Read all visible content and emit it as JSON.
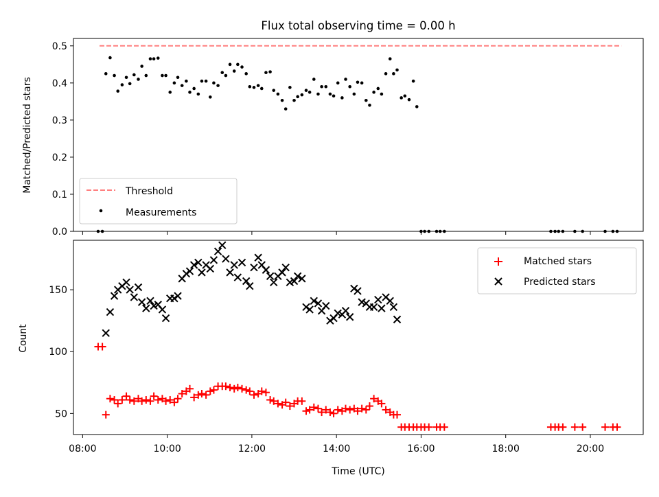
{
  "figure": {
    "title": "Flux total observing time = 0.00 h",
    "xlabel": "Time (UTC)",
    "x_ticks": [
      "08:00",
      "10:00",
      "12:00",
      "14:00",
      "16:00",
      "18:00",
      "20:00"
    ]
  },
  "chart_data": [
    {
      "type": "scatter",
      "ylabel": "Matched/Predicted stars",
      "ylim": [
        0,
        0.52
      ],
      "xlim": [
        "07:47",
        "21:15"
      ],
      "y_ticks": [
        "0.0",
        "0.1",
        "0.2",
        "0.3",
        "0.4",
        "0.5"
      ],
      "legend_position": "lower-left",
      "colors": {
        "threshold": "#ff7f7f",
        "measurements": "#000000"
      },
      "series": [
        {
          "name": "Threshold",
          "style": "dashed-line",
          "x": [
            "08:24",
            "20:44"
          ],
          "y": [
            0.5,
            0.5
          ]
        },
        {
          "name": "Measurements",
          "style": "points",
          "x": [
            "08:22",
            "08:28",
            "08:33",
            "08:39",
            "08:45",
            "08:50",
            "08:56",
            "09:02",
            "09:07",
            "09:13",
            "09:19",
            "09:24",
            "09:30",
            "09:36",
            "09:41",
            "09:47",
            "09:53",
            "09:58",
            "10:04",
            "10:10",
            "10:15",
            "10:21",
            "10:27",
            "10:32",
            "10:38",
            "10:44",
            "10:49",
            "10:55",
            "11:01",
            "11:06",
            "11:12",
            "11:18",
            "11:23",
            "11:29",
            "11:35",
            "11:40",
            "11:46",
            "11:52",
            "11:57",
            "12:03",
            "12:09",
            "12:14",
            "12:20",
            "12:26",
            "12:31",
            "12:37",
            "12:43",
            "12:48",
            "12:54",
            "13:00",
            "13:05",
            "13:11",
            "13:17",
            "13:22",
            "13:28",
            "13:34",
            "13:39",
            "13:45",
            "13:51",
            "13:56",
            "14:02",
            "14:08",
            "14:13",
            "14:19",
            "14:25",
            "14:30",
            "14:36",
            "14:42",
            "14:47",
            "14:53",
            "14:59",
            "15:04",
            "15:10",
            "15:16",
            "15:21",
            "15:26",
            "15:32",
            "15:37",
            "15:43",
            "15:49",
            "15:54",
            "16:00",
            "16:05",
            "16:11",
            "16:22",
            "16:27",
            "16:33",
            "19:04",
            "19:10",
            "19:15",
            "19:21",
            "19:38",
            "19:49",
            "20:21",
            "20:32",
            "20:38"
          ],
          "y": [
            0.0,
            0.0,
            0.425,
            0.468,
            0.42,
            0.378,
            0.395,
            0.415,
            0.398,
            0.422,
            0.41,
            0.445,
            0.42,
            0.465,
            0.465,
            0.467,
            0.42,
            0.42,
            0.375,
            0.4,
            0.415,
            0.393,
            0.405,
            0.375,
            0.385,
            0.37,
            0.405,
            0.405,
            0.362,
            0.4,
            0.393,
            0.428,
            0.42,
            0.45,
            0.432,
            0.45,
            0.443,
            0.425,
            0.39,
            0.388,
            0.393,
            0.385,
            0.428,
            0.43,
            0.38,
            0.37,
            0.353,
            0.33,
            0.388,
            0.353,
            0.363,
            0.368,
            0.38,
            0.375,
            0.41,
            0.37,
            0.39,
            0.39,
            0.37,
            0.365,
            0.4,
            0.36,
            0.41,
            0.39,
            0.37,
            0.402,
            0.4,
            0.353,
            0.34,
            0.375,
            0.385,
            0.37,
            0.425,
            0.465,
            0.425,
            0.435,
            0.36,
            0.365,
            0.355,
            0.405,
            0.336,
            0.0,
            0.0,
            0.0,
            0.0,
            0.0,
            0.0,
            0.0,
            0.0,
            0.0,
            0.0,
            0.0,
            0.0,
            0.0,
            0.0,
            0.0
          ]
        }
      ]
    },
    {
      "type": "scatter",
      "ylabel": "Count",
      "ylim": [
        33,
        190
      ],
      "xlim": [
        "07:47",
        "21:15"
      ],
      "y_ticks": [
        "50",
        "100",
        "150"
      ],
      "legend_position": "top-right",
      "colors": {
        "matched": "#ff0000",
        "predicted": "#000000"
      },
      "series": [
        {
          "name": "Matched stars",
          "marker": "plus",
          "x": [
            "08:22",
            "08:28",
            "08:33",
            "08:39",
            "08:45",
            "08:50",
            "08:56",
            "09:02",
            "09:07",
            "09:13",
            "09:19",
            "09:24",
            "09:30",
            "09:36",
            "09:41",
            "09:47",
            "09:53",
            "09:58",
            "10:04",
            "10:10",
            "10:15",
            "10:21",
            "10:27",
            "10:32",
            "10:38",
            "10:44",
            "10:49",
            "10:55",
            "11:01",
            "11:06",
            "11:12",
            "11:18",
            "11:23",
            "11:29",
            "11:35",
            "11:40",
            "11:46",
            "11:52",
            "11:57",
            "12:03",
            "12:09",
            "12:14",
            "12:20",
            "12:26",
            "12:31",
            "12:37",
            "12:43",
            "12:48",
            "12:54",
            "13:00",
            "13:05",
            "13:11",
            "13:17",
            "13:22",
            "13:28",
            "13:34",
            "13:39",
            "13:45",
            "13:51",
            "13:56",
            "14:02",
            "14:08",
            "14:13",
            "14:19",
            "14:25",
            "14:30",
            "14:36",
            "14:42",
            "14:47",
            "14:53",
            "14:59",
            "15:04",
            "15:10",
            "15:16",
            "15:21",
            "15:26",
            "15:32",
            "15:37",
            "15:43",
            "15:49",
            "15:54",
            "16:00",
            "16:05",
            "16:11",
            "16:22",
            "16:27",
            "16:33",
            "19:04",
            "19:10",
            "19:15",
            "19:21",
            "19:38",
            "19:49",
            "20:21",
            "20:32",
            "20:38"
          ],
          "y": [
            104,
            104,
            49,
            62,
            61,
            58,
            61,
            64,
            61,
            60,
            62,
            60,
            61,
            60,
            64,
            61,
            62,
            60,
            61,
            59,
            62,
            66,
            68,
            70,
            63,
            65,
            66,
            65,
            68,
            69,
            72,
            72,
            72,
            71,
            70,
            71,
            70,
            69,
            68,
            65,
            66,
            68,
            67,
            61,
            60,
            58,
            57,
            59,
            56,
            58,
            60,
            60,
            52,
            53,
            55,
            54,
            51,
            53,
            51,
            50,
            53,
            52,
            54,
            53,
            54,
            52,
            54,
            53,
            56,
            62,
            60,
            58,
            53,
            51,
            49,
            49,
            39,
            39,
            39,
            39,
            39,
            39,
            39,
            39,
            39,
            39,
            39,
            39,
            39,
            39,
            39,
            39,
            39,
            39,
            39,
            39
          ]
        },
        {
          "name": "Predicted stars",
          "marker": "x",
          "x": [
            "08:33",
            "08:39",
            "08:45",
            "08:50",
            "08:56",
            "09:02",
            "09:07",
            "09:13",
            "09:19",
            "09:24",
            "09:30",
            "09:36",
            "09:41",
            "09:47",
            "09:53",
            "09:58",
            "10:04",
            "10:10",
            "10:15",
            "10:21",
            "10:27",
            "10:32",
            "10:38",
            "10:44",
            "10:49",
            "10:55",
            "11:01",
            "11:06",
            "11:12",
            "11:18",
            "11:23",
            "11:29",
            "11:35",
            "11:40",
            "11:46",
            "11:52",
            "11:57",
            "12:03",
            "12:09",
            "12:14",
            "12:20",
            "12:26",
            "12:31",
            "12:37",
            "12:43",
            "12:48",
            "12:54",
            "13:00",
            "13:05",
            "13:11",
            "13:17",
            "13:22",
            "13:28",
            "13:34",
            "13:39",
            "13:45",
            "13:51",
            "13:56",
            "14:02",
            "14:08",
            "14:13",
            "14:19",
            "14:25",
            "14:30",
            "14:36",
            "14:42",
            "14:47",
            "14:53",
            "14:59",
            "15:04",
            "15:10",
            "15:16",
            "15:21",
            "15:26"
          ],
          "y": [
            115,
            132,
            145,
            150,
            153,
            156,
            150,
            144,
            152,
            140,
            135,
            141,
            137,
            138,
            134,
            127,
            143,
            143,
            145,
            159,
            163,
            165,
            170,
            172,
            164,
            170,
            167,
            174,
            181,
            186,
            175,
            164,
            170,
            160,
            172,
            157,
            153,
            168,
            176,
            170,
            166,
            161,
            156,
            161,
            164,
            168,
            156,
            157,
            161,
            159,
            136,
            134,
            141,
            139,
            133,
            137,
            125,
            127,
            131,
            130,
            133,
            128,
            151,
            149,
            140,
            139,
            136,
            136,
            142,
            135,
            144,
            141,
            136,
            126
          ]
        }
      ]
    }
  ]
}
